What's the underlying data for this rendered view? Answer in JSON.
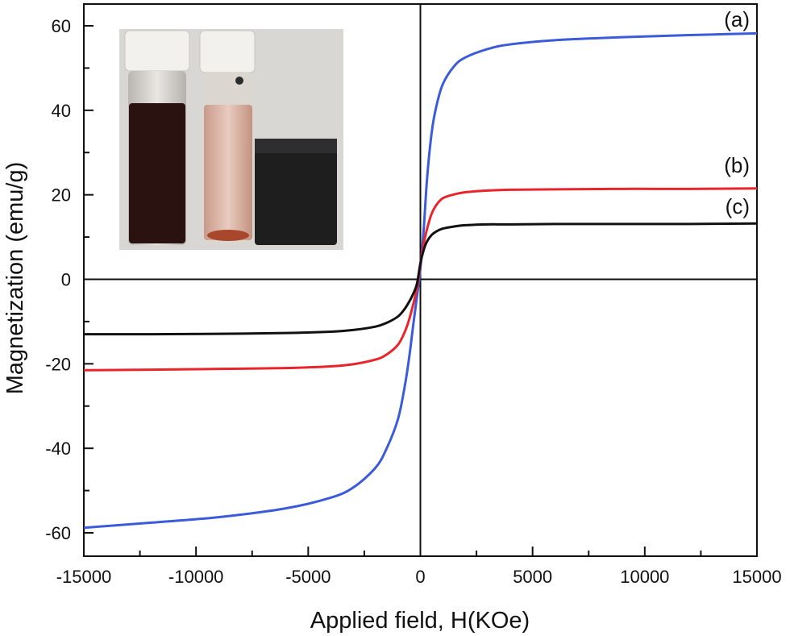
{
  "chart_data": {
    "type": "line",
    "xlabel": "Applied field, H(KOe)",
    "ylabel": "Magnetization (emu/g)",
    "xlim": [
      -15000,
      15000
    ],
    "ylim": [
      -65,
      65
    ],
    "xticks": [
      -15000,
      -10000,
      -5000,
      0,
      5000,
      10000,
      15000
    ],
    "yticks": [
      -60,
      -40,
      -20,
      0,
      20,
      40,
      60
    ],
    "xtick_labels": [
      "-15000",
      "-10000",
      "-5000",
      "0",
      "5000",
      "10000",
      "15000"
    ],
    "ytick_labels": [
      "-60",
      "-40",
      "-20",
      "0",
      "20",
      "40",
      "60"
    ],
    "grid": false,
    "legend": "none",
    "x": [
      -15000,
      -12000,
      -9000,
      -6000,
      -4000,
      -3000,
      -2000,
      -1500,
      -1000,
      -700,
      -500,
      -300,
      -150,
      0,
      150,
      300,
      500,
      700,
      1000,
      1500,
      2000,
      3000,
      4000,
      6000,
      9000,
      12000,
      15000
    ],
    "series": [
      {
        "name": "(a)",
        "color": "#3b5bdb",
        "values": [
          -58.8,
          -57.6,
          -56.3,
          -54.2,
          -51.7,
          -49.3,
          -44.6,
          -40.0,
          -33.1,
          -25.4,
          -18.5,
          -10.0,
          -4.0,
          2.5,
          12.0,
          24.0,
          34.6,
          40.7,
          46.2,
          50.4,
          52.5,
          54.5,
          55.6,
          56.6,
          57.3,
          57.8,
          58.2
        ]
      },
      {
        "name": "(b)",
        "color": "#e8252b",
        "values": [
          -21.5,
          -21.4,
          -21.2,
          -21.0,
          -20.6,
          -20.1,
          -19.0,
          -17.8,
          -15.5,
          -12.5,
          -9.5,
          -5.5,
          -2.0,
          3.5,
          8.5,
          12.0,
          15.5,
          17.5,
          19.2,
          20.1,
          20.6,
          21.0,
          21.2,
          21.3,
          21.4,
          21.4,
          21.5
        ]
      },
      {
        "name": "(c)",
        "color": "#111111",
        "values": [
          -13.0,
          -13.0,
          -12.9,
          -12.7,
          -12.4,
          -12.0,
          -11.2,
          -10.3,
          -8.8,
          -7.0,
          -5.3,
          -3.2,
          -1.0,
          3.8,
          7.0,
          9.0,
          10.5,
          11.3,
          12.0,
          12.5,
          12.8,
          13.0,
          13.0,
          13.1,
          13.1,
          13.1,
          13.2
        ]
      }
    ]
  },
  "inset_photo": {
    "description_icon": "vials-and-magnet-photo"
  }
}
